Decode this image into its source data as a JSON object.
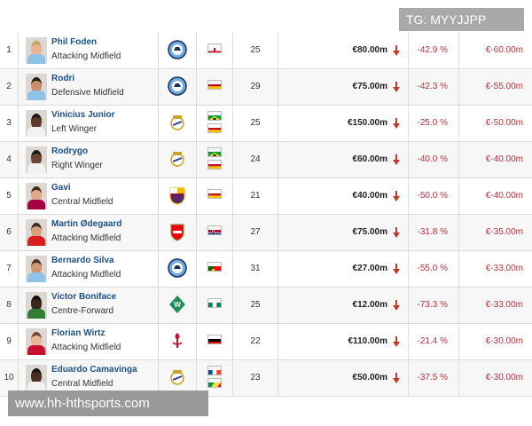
{
  "watermark_top": "TG: MYYJJPP",
  "watermark_bottom": "www.hh-hthsports.com",
  "colors": {
    "name_link": "#1a4f8a",
    "negative": "#b5303a",
    "arrow": "#c0392b",
    "row_alt": "#f7f7f7"
  },
  "players": [
    {
      "rank": "1",
      "name": "Phil Foden",
      "position": "Attacking Midfield",
      "club_icon": "man-city-crest-icon",
      "flags": [
        "england-flag-icon"
      ],
      "age": "25",
      "value": "€80.00m",
      "pct_change": "-42.9 %",
      "value_change": "€-60.00m"
    },
    {
      "rank": "2",
      "name": "Rodri",
      "position": "Defensive Midfield",
      "club_icon": "man-city-crest-icon",
      "flags": [
        "spain-flag-icon"
      ],
      "age": "29",
      "value": "€75.00m",
      "pct_change": "-42.3 %",
      "value_change": "€-55.00m"
    },
    {
      "rank": "3",
      "name": "Vinicius Junior",
      "position": "Left Winger",
      "club_icon": "real-madrid-crest-icon",
      "flags": [
        "brazil-flag-icon",
        "spain-flag-icon"
      ],
      "age": "25",
      "value": "€150.00m",
      "pct_change": "-25.0 %",
      "value_change": "€-50.00m"
    },
    {
      "rank": "4",
      "name": "Rodrygo",
      "position": "Right Winger",
      "club_icon": "real-madrid-crest-icon",
      "flags": [
        "brazil-flag-icon",
        "spain-flag-icon"
      ],
      "age": "24",
      "value": "€60.00m",
      "pct_change": "-40.0 %",
      "value_change": "€-40.00m"
    },
    {
      "rank": "5",
      "name": "Gavi",
      "position": "Central Midfield",
      "club_icon": "barcelona-crest-icon",
      "flags": [
        "spain-flag-icon"
      ],
      "age": "21",
      "value": "€40.00m",
      "pct_change": "-50.0 %",
      "value_change": "€-40.00m"
    },
    {
      "rank": "6",
      "name": "Martin Ødegaard",
      "position": "Attacking Midfield",
      "club_icon": "arsenal-crest-icon",
      "flags": [
        "norway-flag-icon"
      ],
      "age": "27",
      "value": "€75.00m",
      "pct_change": "-31.8 %",
      "value_change": "€-35.00m"
    },
    {
      "rank": "7",
      "name": "Bernardo Silva",
      "position": "Attacking Midfield",
      "club_icon": "man-city-crest-icon",
      "flags": [
        "portugal-flag-icon"
      ],
      "age": "31",
      "value": "€27.00m",
      "pct_change": "-55.0 %",
      "value_change": "€-33.00m"
    },
    {
      "rank": "8",
      "name": "Victor Boniface",
      "position": "Centre-Forward",
      "club_icon": "werder-bremen-crest-icon",
      "flags": [
        "nigeria-flag-icon"
      ],
      "age": "25",
      "value": "€12.00m",
      "pct_change": "-73.3 %",
      "value_change": "€-33.00m"
    },
    {
      "rank": "9",
      "name": "Florian Wirtz",
      "position": "Attacking Midfield",
      "club_icon": "liverpool-crest-icon",
      "flags": [
        "germany-flag-icon"
      ],
      "age": "22",
      "value": "€110.00m",
      "pct_change": "-21.4 %",
      "value_change": "€-30.00m"
    },
    {
      "rank": "10",
      "name": "Eduardo Camavinga",
      "position": "Central Midfield",
      "club_icon": "real-madrid-crest-icon",
      "flags": [
        "france-flag-icon",
        "congo-flag-icon"
      ],
      "age": "23",
      "value": "€50.00m",
      "pct_change": "-37.5 %",
      "value_change": "€-30.00m"
    }
  ]
}
